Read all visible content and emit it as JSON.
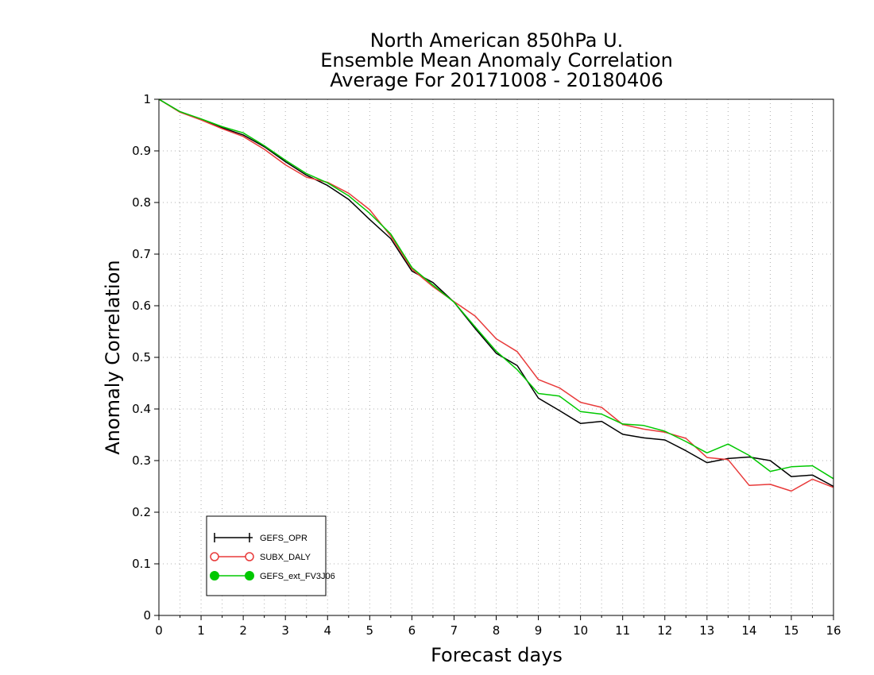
{
  "chart_data": {
    "type": "line",
    "title_lines": [
      "North American 850hPa U.",
      "Ensemble Mean Anomaly Correlation",
      "Average For 20171008 - 20180406"
    ],
    "xlabel": "Forecast days",
    "ylabel": "Anomaly Correlation",
    "xlim": [
      0,
      16
    ],
    "ylim": [
      0,
      1
    ],
    "x_ticks": [
      "0",
      "1",
      "2",
      "3",
      "4",
      "5",
      "6",
      "7",
      "8",
      "9",
      "10",
      "11",
      "12",
      "13",
      "14",
      "15",
      "16"
    ],
    "y_ticks": [
      "0",
      "0.1",
      "0.2",
      "0.3",
      "0.4",
      "0.5",
      "0.6",
      "0.7",
      "0.8",
      "0.9",
      "1"
    ],
    "grid": true,
    "legend_position": "bottom-left",
    "x": [
      0,
      0.5,
      1,
      1.5,
      2,
      2.5,
      3,
      3.5,
      4,
      4.5,
      5,
      5.5,
      6,
      6.5,
      7,
      7.5,
      8,
      8.5,
      9,
      9.5,
      10,
      10.5,
      11,
      11.5,
      12,
      12.5,
      13,
      13.5,
      14,
      14.5,
      15,
      15.5,
      16
    ],
    "series": [
      {
        "name": "GEFS_OPR",
        "color": "#000000",
        "marker": "plus",
        "values": [
          1.0,
          0.976,
          0.961,
          0.945,
          0.931,
          0.908,
          0.879,
          0.853,
          0.833,
          0.806,
          0.767,
          0.73,
          0.667,
          0.645,
          0.607,
          0.556,
          0.508,
          0.484,
          0.421,
          0.397,
          0.372,
          0.376,
          0.351,
          0.344,
          0.34,
          0.319,
          0.296,
          0.304,
          0.307,
          0.3,
          0.269,
          0.272,
          0.25
        ]
      },
      {
        "name": "SUBX_DALY",
        "color": "#e83a3a",
        "marker": "open-circle",
        "values": [
          1.0,
          0.975,
          0.96,
          0.943,
          0.928,
          0.903,
          0.873,
          0.849,
          0.839,
          0.818,
          0.786,
          0.735,
          0.671,
          0.637,
          0.608,
          0.58,
          0.536,
          0.511,
          0.457,
          0.441,
          0.413,
          0.403,
          0.37,
          0.361,
          0.355,
          0.343,
          0.306,
          0.302,
          0.252,
          0.254,
          0.241,
          0.264,
          0.248
        ]
      },
      {
        "name": "GEFS_ext_FV3J06",
        "color": "#00c800",
        "marker": "filled-circle",
        "values": [
          1.0,
          0.976,
          0.962,
          0.947,
          0.935,
          0.91,
          0.882,
          0.856,
          0.838,
          0.813,
          0.779,
          0.739,
          0.674,
          0.64,
          0.607,
          0.559,
          0.512,
          0.476,
          0.43,
          0.425,
          0.395,
          0.39,
          0.371,
          0.368,
          0.357,
          0.337,
          0.315,
          0.332,
          0.31,
          0.279,
          0.288,
          0.29,
          0.265
        ]
      }
    ]
  }
}
